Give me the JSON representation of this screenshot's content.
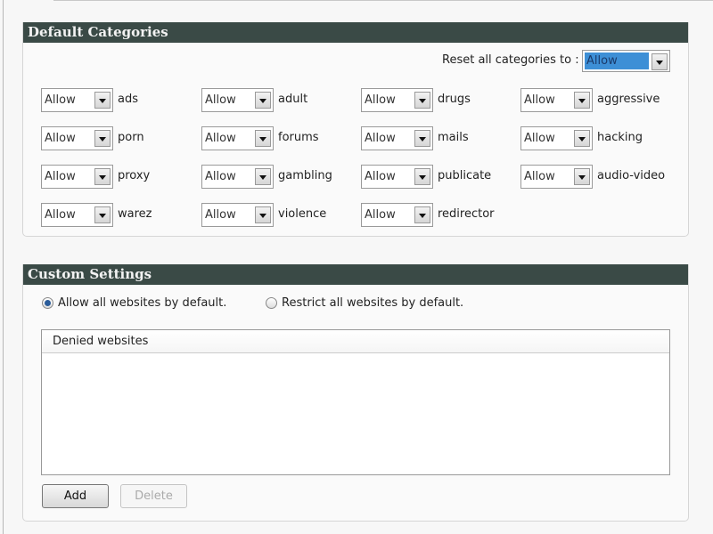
{
  "default_categories": {
    "title": "Default Categories",
    "reset_label": "Reset all categories to :",
    "reset_value": "Allow",
    "reset_highlight_color": "#3d8fd6",
    "categories": [
      {
        "value": "Allow",
        "name": "ads"
      },
      {
        "value": "Allow",
        "name": "adult"
      },
      {
        "value": "Allow",
        "name": "drugs"
      },
      {
        "value": "Allow",
        "name": "aggressive"
      },
      {
        "value": "Allow",
        "name": "porn"
      },
      {
        "value": "Allow",
        "name": "forums"
      },
      {
        "value": "Allow",
        "name": "mails"
      },
      {
        "value": "Allow",
        "name": "hacking"
      },
      {
        "value": "Allow",
        "name": "proxy"
      },
      {
        "value": "Allow",
        "name": "gambling"
      },
      {
        "value": "Allow",
        "name": "publicate"
      },
      {
        "value": "Allow",
        "name": "audio-video"
      },
      {
        "value": "Allow",
        "name": "warez"
      },
      {
        "value": "Allow",
        "name": "violence"
      },
      {
        "value": "Allow",
        "name": "redirector"
      }
    ]
  },
  "custom_settings": {
    "title": "Custom Settings",
    "radio_allow": "Allow all websites by default.",
    "radio_restrict": "Restrict all websites by default.",
    "selected": "allow",
    "list_header": "Denied websites",
    "list_items": [],
    "add_label": "Add",
    "delete_label": "Delete"
  },
  "colors": {
    "header_bg": "#3a4a46"
  }
}
